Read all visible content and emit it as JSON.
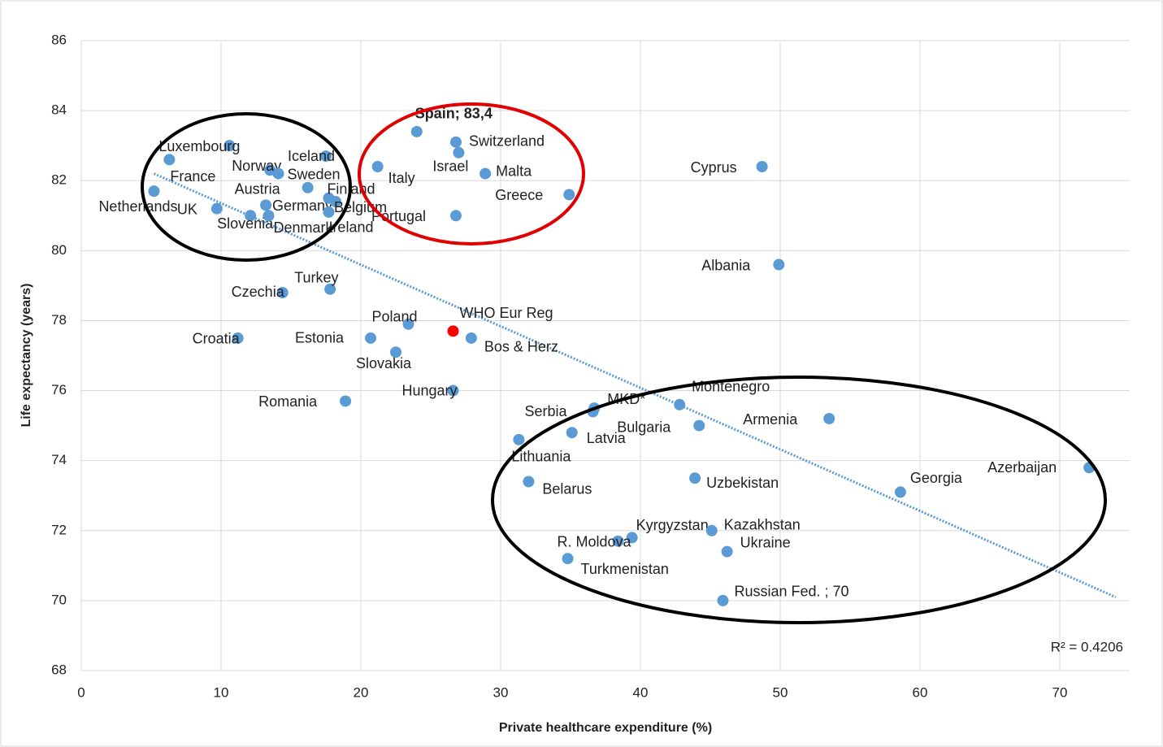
{
  "chart_data": {
    "type": "scatter",
    "x_label": "Private healthcare expenditure (%)",
    "y_label": "Life expectancy (years)",
    "xlim": [
      0,
      75
    ],
    "ylim": [
      68,
      86
    ],
    "xticks": [
      0,
      10,
      20,
      30,
      40,
      50,
      60,
      70
    ],
    "yticks": [
      68,
      70,
      72,
      74,
      76,
      78,
      80,
      82,
      84,
      86
    ],
    "grid": true,
    "color": "#5b9bd5",
    "labels": [
      "Luxembourg",
      "France",
      "Netherlands",
      "UK",
      "Slovenia",
      "Norway",
      "Sweden",
      "Iceland",
      "Austria",
      "Germany",
      "Denmark",
      "Finland",
      "Belgium",
      "Ireland",
      "Italy",
      "Spain; 83,4",
      "Switzerland",
      "Israel",
      "Malta",
      "Greece",
      "Portugal",
      "Cyprus",
      "Albania",
      "Turkey",
      "Czechia",
      "Poland",
      "Bos & Herz",
      "Estonia",
      "Croatia",
      "Slovakia",
      "Hungary",
      "Romania",
      "Serbia",
      "MKD*",
      "Latvia",
      "Montenegro",
      "Bulgaria",
      "Armenia",
      "Lithuania",
      "Belarus",
      "Uzbekistan",
      "Georgia",
      "Azerbaijan",
      "Kyrgyzstan",
      "R. Moldova",
      "Kazakhstan",
      "Ukraine",
      "Turkmenistan",
      "Russian Fed. ; 70"
    ],
    "x": [
      10.6,
      6.3,
      5.2,
      9.7,
      12.1,
      13.5,
      14.1,
      17.5,
      16.2,
      13.2,
      13.4,
      17.7,
      18.2,
      17.7,
      21.2,
      24.0,
      26.8,
      27.0,
      28.9,
      34.9,
      26.8,
      48.7,
      49.9,
      17.8,
      14.4,
      23.4,
      27.9,
      20.7,
      11.2,
      22.5,
      26.6,
      18.9,
      36.6,
      36.7,
      35.1,
      42.8,
      44.2,
      53.5,
      31.3,
      32.0,
      43.9,
      58.6,
      72.1,
      39.4,
      38.4,
      45.1,
      46.2,
      34.8,
      45.9
    ],
    "y": [
      83.0,
      82.6,
      81.7,
      81.2,
      81.0,
      82.3,
      82.2,
      82.7,
      81.8,
      81.3,
      81.0,
      81.5,
      81.4,
      81.1,
      82.4,
      83.4,
      83.1,
      82.8,
      82.2,
      81.6,
      81.0,
      82.4,
      79.6,
      78.9,
      78.8,
      77.9,
      77.5,
      77.5,
      77.5,
      77.1,
      76.0,
      75.7,
      75.4,
      75.5,
      74.8,
      75.6,
      75.0,
      75.2,
      74.6,
      73.4,
      73.5,
      73.1,
      73.8,
      71.8,
      71.7,
      72.0,
      71.4,
      71.2,
      70.0
    ],
    "reference": {
      "label": "WHO Eur Reg",
      "x": 26.6,
      "y": 77.7,
      "color": "#ff0000"
    },
    "trendline": {
      "x": [
        5.2,
        74
      ],
      "y": [
        82.2,
        70.1
      ],
      "color": "#5b9bd5",
      "label": "R² = 0.4206"
    }
  }
}
